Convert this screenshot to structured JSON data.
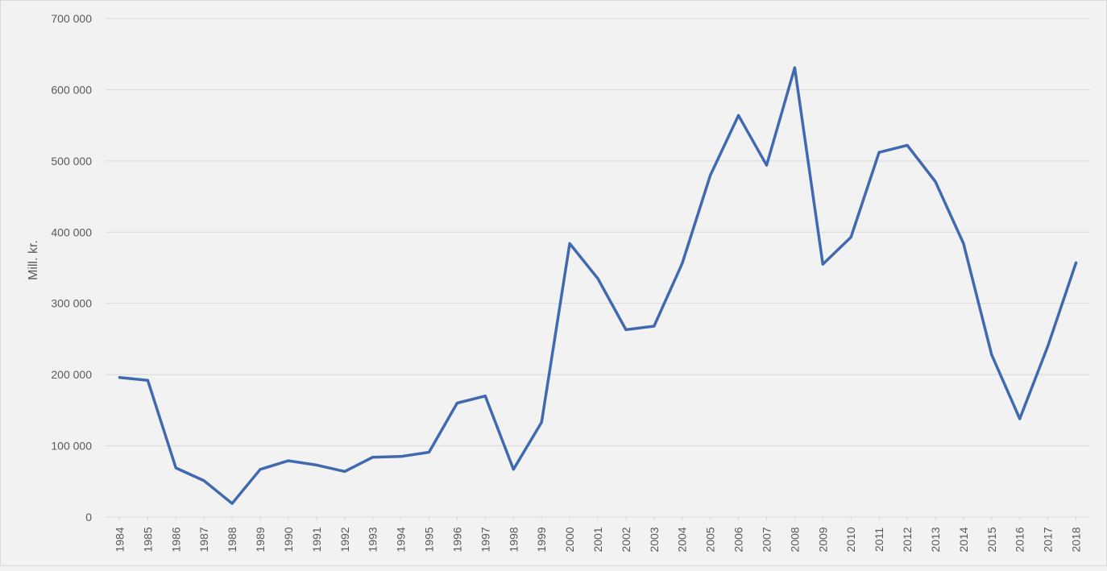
{
  "chart_data": {
    "type": "line",
    "title": "",
    "xlabel": "",
    "ylabel": "Mill. kr.",
    "ylim": [
      0,
      700000
    ],
    "yticks": [
      0,
      100000,
      200000,
      300000,
      400000,
      500000,
      600000,
      700000
    ],
    "ytick_labels": [
      "0",
      "100 000",
      "200 000",
      "300 000",
      "400 000",
      "500 000",
      "600 000",
      "700 000"
    ],
    "grid": true,
    "legend": "none",
    "categories": [
      "1984",
      "1985",
      "1986",
      "1987",
      "1988",
      "1989",
      "1990",
      "1991",
      "1992",
      "1993",
      "1994",
      "1995",
      "1996",
      "1997",
      "1998",
      "1999",
      "2000",
      "2001",
      "2002",
      "2003",
      "2004",
      "2005",
      "2006",
      "2007",
      "2008",
      "2009",
      "2010",
      "2011",
      "2012",
      "2013",
      "2014",
      "2015",
      "2016",
      "2017",
      "2018"
    ],
    "series": [
      {
        "color": "#4169b0",
        "values": [
          196000,
          192000,
          69000,
          51000,
          19000,
          67000,
          79000,
          73000,
          64000,
          84000,
          85000,
          91000,
          160000,
          170000,
          67000,
          133000,
          384000,
          335000,
          263000,
          268000,
          356000,
          480000,
          564000,
          494000,
          631000,
          355000,
          393000,
          512000,
          522000,
          471000,
          384000,
          228000,
          138000,
          240000,
          357000
        ]
      }
    ]
  }
}
